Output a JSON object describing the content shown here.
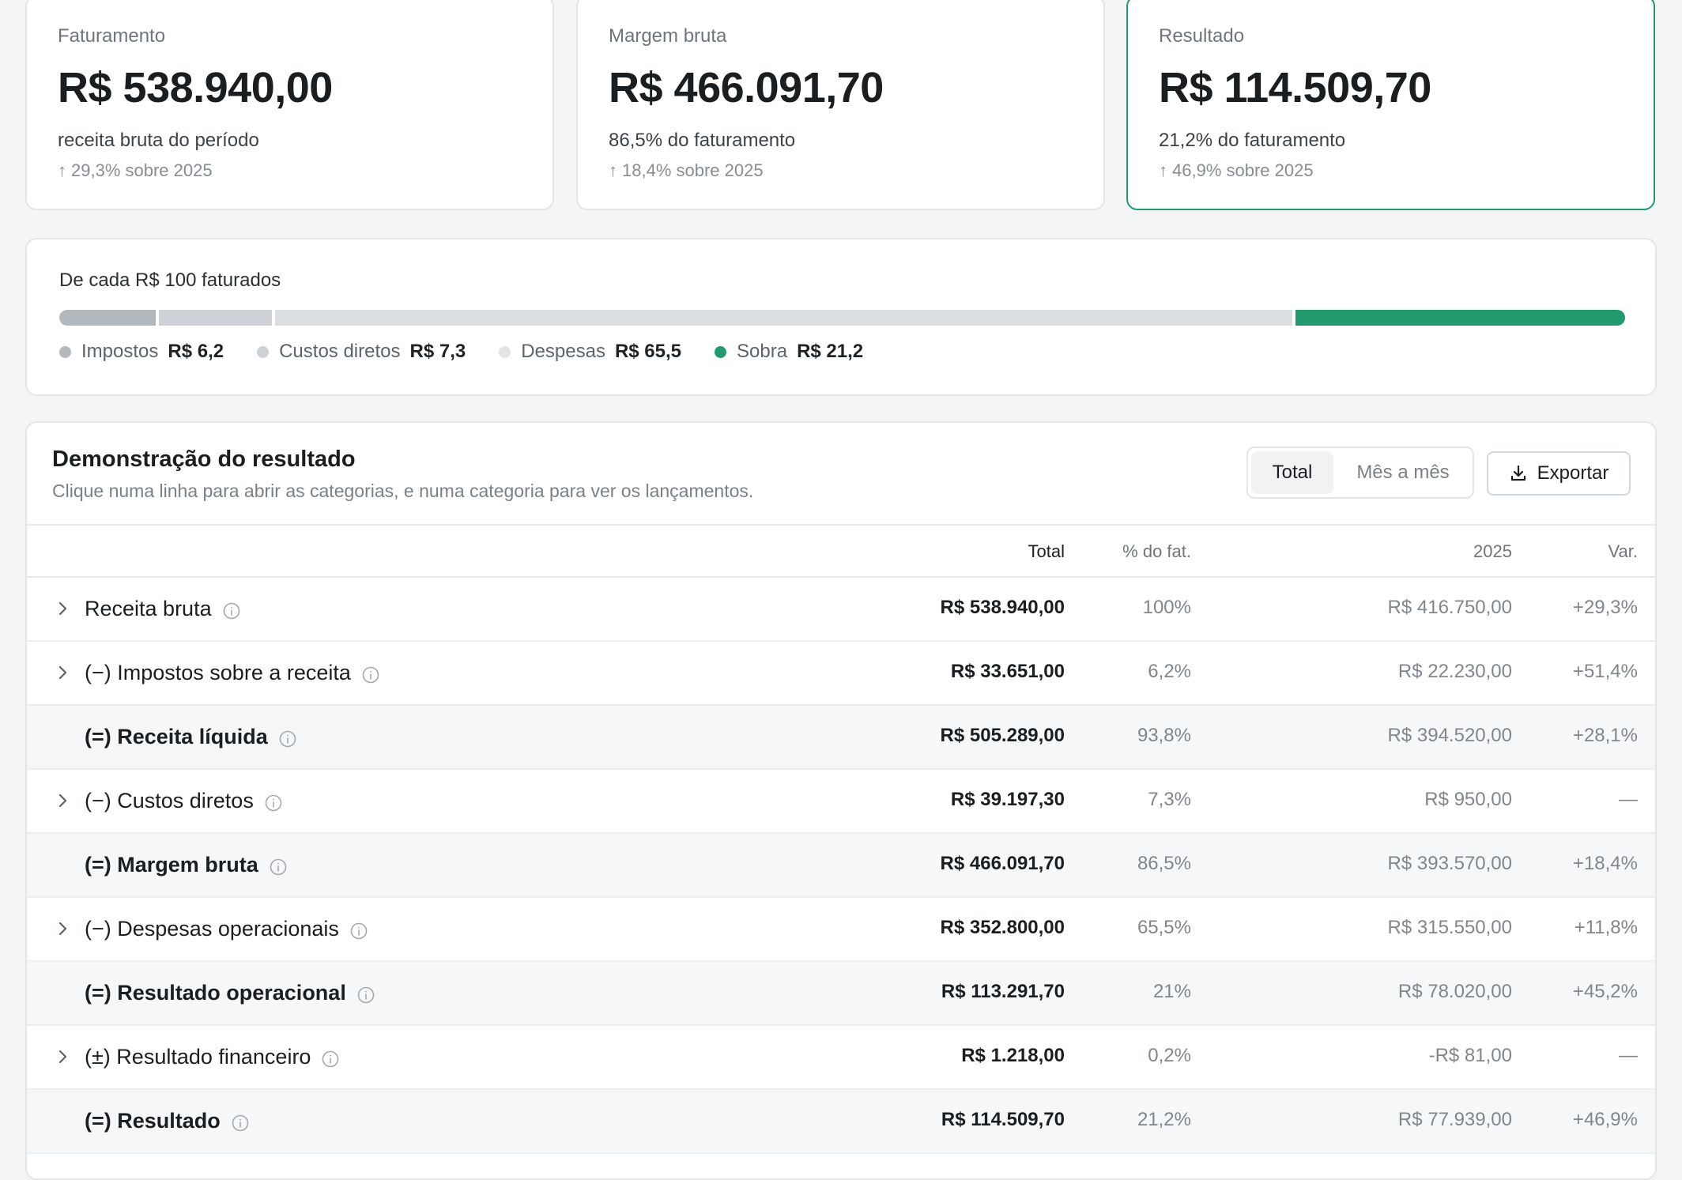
{
  "kpis": [
    {
      "label": "Faturamento",
      "value": "R$ 538.940,00",
      "desc": "receita bruta do período",
      "trend": "29,3% sobre 2025"
    },
    {
      "label": "Margem bruta",
      "value": "R$ 466.091,70",
      "desc": "86,5% do faturamento",
      "trend": "18,4% sobre 2025"
    },
    {
      "label": "Resultado",
      "value": "R$ 114.509,70",
      "desc": "21,2% do faturamento",
      "trend": "46,9% sobre 2025"
    }
  ],
  "trend_arrow": "↑",
  "breakdown": {
    "title": "De cada R$ 100 faturados",
    "segments": [
      {
        "name": "Impostos",
        "value_label": "R$ 6,2",
        "value": 6.2,
        "color": "#b3b8bd"
      },
      {
        "name": "Custos diretos",
        "value_label": "R$ 7,3",
        "value": 7.3,
        "color": "#cdd1d5"
      },
      {
        "name": "Despesas",
        "value_label": "R$ 65,5",
        "value": 65.5,
        "color": "#dcdfe2"
      },
      {
        "name": "Sobra",
        "value_label": "R$ 21,2",
        "value": 21.2,
        "color": "#229a6e"
      }
    ]
  },
  "statement": {
    "title": "Demonstração do resultado",
    "subtitle": "Clique numa linha para abrir as categorias, e numa categoria para ver os lançamentos.",
    "view_options": {
      "active": "Total",
      "inactive": "Mês a mês"
    },
    "export_label": "Exportar",
    "columns": {
      "total": "Total",
      "pct": "% do fat.",
      "prev": "2025",
      "var": "Var."
    },
    "rows": [
      {
        "label": "Receita bruta",
        "expandable": true,
        "subtotal": false,
        "total": "R$ 538.940,00",
        "pct": "100%",
        "prev": "R$ 416.750,00",
        "var": "+29,3%"
      },
      {
        "label": "(−) Impostos sobre a receita",
        "expandable": true,
        "subtotal": false,
        "total": "R$ 33.651,00",
        "pct": "6,2%",
        "prev": "R$ 22.230,00",
        "var": "+51,4%"
      },
      {
        "label": "(=) Receita líquida",
        "expandable": false,
        "subtotal": true,
        "total": "R$ 505.289,00",
        "pct": "93,8%",
        "prev": "R$ 394.520,00",
        "var": "+28,1%"
      },
      {
        "label": "(−) Custos diretos",
        "expandable": true,
        "subtotal": false,
        "total": "R$ 39.197,30",
        "pct": "7,3%",
        "prev": "R$ 950,00",
        "var": "—"
      },
      {
        "label": "(=) Margem bruta",
        "expandable": false,
        "subtotal": true,
        "total": "R$ 466.091,70",
        "pct": "86,5%",
        "prev": "R$ 393.570,00",
        "var": "+18,4%"
      },
      {
        "label": "(−) Despesas operacionais",
        "expandable": true,
        "subtotal": false,
        "total": "R$ 352.800,00",
        "pct": "65,5%",
        "prev": "R$ 315.550,00",
        "var": "+11,8%"
      },
      {
        "label": "(=) Resultado operacional",
        "expandable": false,
        "subtotal": true,
        "total": "R$ 113.291,70",
        "pct": "21%",
        "prev": "R$ 78.020,00",
        "var": "+45,2%"
      },
      {
        "label": "(±) Resultado financeiro",
        "expandable": true,
        "subtotal": false,
        "total": "R$ 1.218,00",
        "pct": "0,2%",
        "prev": "-R$ 81,00",
        "var": "—"
      },
      {
        "label": "(=) Resultado",
        "expandable": false,
        "subtotal": true,
        "total": "R$ 114.509,70",
        "pct": "21,2%",
        "prev": "R$ 77.939,00",
        "var": "+46,9%"
      }
    ]
  },
  "icons": {
    "chevron": "chevron-right-icon",
    "info": "info-icon",
    "download": "download-icon"
  }
}
